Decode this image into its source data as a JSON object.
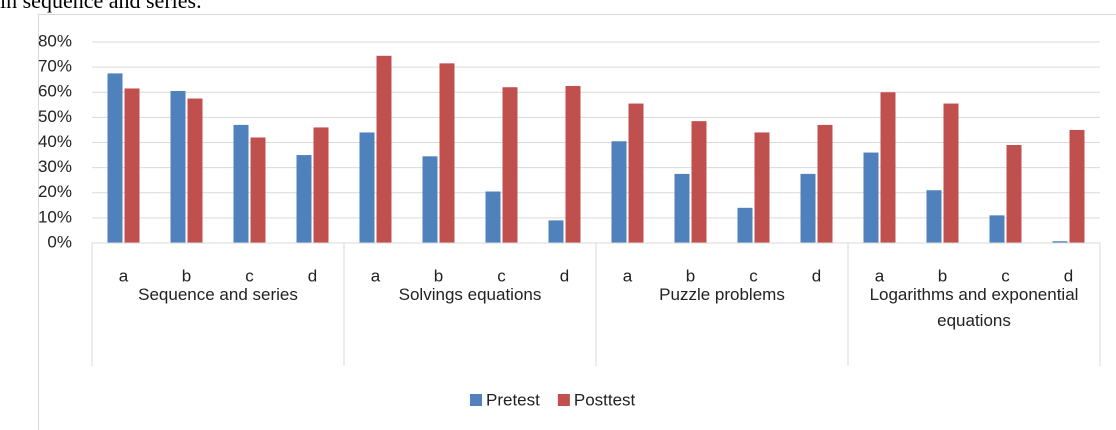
{
  "caption": "in sequence and series.",
  "chart_data": {
    "type": "bar",
    "categories": [
      "a",
      "b",
      "c",
      "d",
      "a",
      "b",
      "c",
      "d",
      "a",
      "b",
      "c",
      "d",
      "a",
      "b",
      "c",
      "d"
    ],
    "category_groups": [
      "Sequence and series",
      "Solvings equations",
      "Puzzle problems",
      "Logarithms and exponential equations"
    ],
    "series": [
      {
        "name": "Pretest",
        "color": "#4f81bd",
        "values": [
          67.5,
          60.5,
          47,
          35,
          44,
          34.5,
          20.5,
          9,
          40.5,
          27.5,
          14,
          27.5,
          36,
          21,
          11,
          0.7
        ]
      },
      {
        "name": "Posttest",
        "color": "#c0504d",
        "values": [
          61.5,
          57.5,
          42,
          46,
          74.5,
          71.5,
          62,
          62.5,
          55.5,
          48.5,
          44,
          47,
          60,
          55.5,
          39,
          45
        ]
      }
    ],
    "ylim": [
      0,
      80
    ],
    "yticks": [
      {
        "value": 0,
        "label": "0%"
      },
      {
        "value": 10,
        "label": "10%"
      },
      {
        "value": 20,
        "label": "20%"
      },
      {
        "value": 30,
        "label": "30%"
      },
      {
        "value": 40,
        "label": "40%"
      },
      {
        "value": 50,
        "label": "50%"
      },
      {
        "value": 60,
        "label": "60%"
      },
      {
        "value": 70,
        "label": "70%"
      },
      {
        "value": 80,
        "label": "80%"
      }
    ],
    "grid": true,
    "legend": "bottom"
  }
}
